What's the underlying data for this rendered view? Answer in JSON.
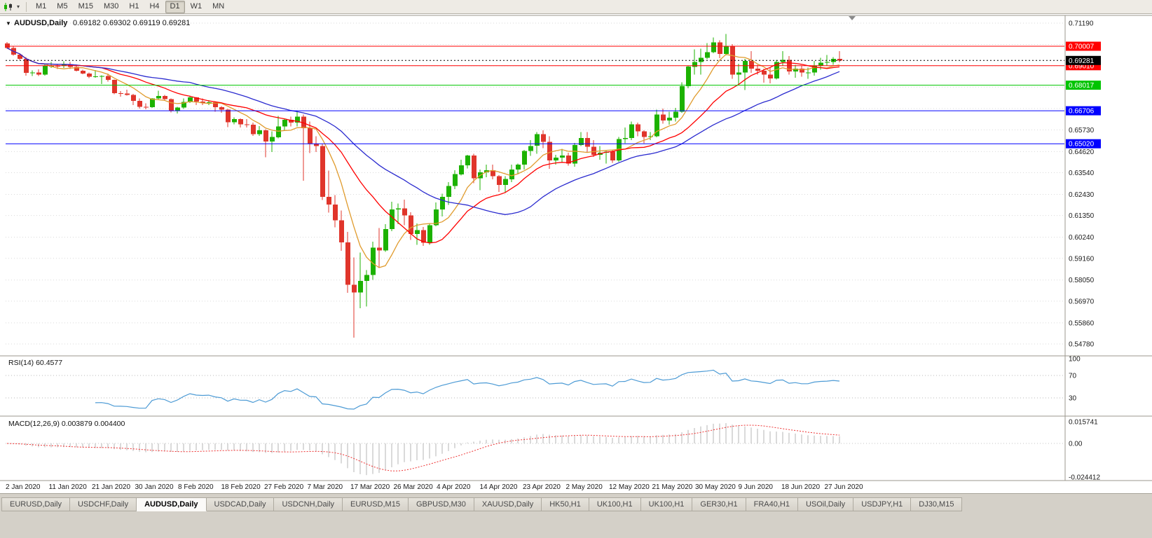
{
  "toolbar": {
    "timeframes": [
      "M1",
      "M5",
      "M15",
      "M30",
      "H1",
      "H4",
      "D1",
      "W1",
      "MN"
    ],
    "active_timeframe": "D1",
    "chart_type_icon": "candlestick-chart",
    "dropdown_glyph": "▾"
  },
  "chart": {
    "dropdown_glyph": "▼",
    "title": "AUDUSD,Daily",
    "ohlc_text": "0.69182 0.69302 0.69119 0.69281"
  },
  "indicator_labels": {
    "rsi": "RSI(14) 60.4577",
    "macd": "MACD(12,26,9) 0.003879 0.004400"
  },
  "tabs": {
    "active_index": 2,
    "items": [
      "EURUSD,Daily",
      "USDCHF,Daily",
      "AUDUSD,Daily",
      "USDCAD,Daily",
      "USDCNH,Daily",
      "EURUSD,M15",
      "GBPUSD,M30",
      "XAUUSD,Daily",
      "HK50,H1",
      "UK100,H1",
      "UK100,H1",
      "GER30,H1",
      "FRA40,H1",
      "USOil,Daily",
      "USDJPY,H1",
      "DJ30,M15"
    ]
  },
  "chart_data": {
    "type": "candlestick",
    "symbol": "AUDUSD",
    "timeframe": "Daily",
    "title": "AUDUSD,Daily",
    "ohlc_display": {
      "open": "0.69182",
      "high": "0.69302",
      "low": "0.69119",
      "close": "0.69281"
    },
    "colors": {
      "bull": "#1CB200",
      "bear": "#E0352B",
      "ma_fast": "#E09B2D",
      "ma_mid": "#FF0000",
      "ma_slow": "#2B2BCF",
      "rsi_line": "#4D9BD5",
      "macd_hist": "#B5B5B5",
      "macd_signal": "#EE3333",
      "grid": "#DADADA"
    },
    "y_axis": {
      "min": 0.5478,
      "max": 0.7119,
      "ticks": [
        [
          0.7119,
          "0.71190"
        ],
        [
          0.70098,
          ""
        ],
        [
          0.69006,
          ""
        ],
        [
          0.67914,
          ""
        ],
        [
          0.66822,
          ""
        ],
        [
          0.6573,
          "0.65730"
        ],
        [
          0.6462,
          "0.64620"
        ],
        [
          0.6354,
          "0.63540"
        ],
        [
          0.6243,
          "0.62430"
        ],
        [
          0.6135,
          "0.61350"
        ],
        [
          0.6024,
          "0.60240"
        ],
        [
          0.5916,
          "0.59160"
        ],
        [
          0.5805,
          "0.58050"
        ],
        [
          0.5697,
          "0.56970"
        ],
        [
          0.5586,
          "0.55860"
        ],
        [
          0.5478,
          "0.54780"
        ]
      ]
    },
    "x_axis_labels": [
      "2 Jan 2020",
      "11 Jan 2020",
      "21 Jan 2020",
      "30 Jan 2020",
      "8 Feb 2020",
      "18 Feb 2020",
      "27 Feb 2020",
      "7 Mar 2020",
      "17 Mar 2020",
      "26 Mar 2020",
      "4 Apr 2020",
      "14 Apr 2020",
      "23 Apr 2020",
      "2 May 2020",
      "12 May 2020",
      "21 May 2020",
      "30 May 2020",
      "9 Jun 2020",
      "18 Jun 2020",
      "27 Jun 2020"
    ],
    "horizontal_lines": [
      {
        "value": 0.70007,
        "label": "0.70007",
        "color": "#FF0000"
      },
      {
        "value": 0.6901,
        "label": "0.69010",
        "color": "#FF0000"
      },
      {
        "value": 0.68017,
        "label": "0.68017",
        "color": "#00C400"
      },
      {
        "value": 0.66706,
        "label": "0.66706",
        "color": "#0000FF"
      },
      {
        "value": 0.6502,
        "label": "0.65020",
        "color": "#0000FF"
      }
    ],
    "bid_line": {
      "value": 0.69281,
      "label": "0.69281",
      "color": "#000000"
    },
    "moving_averages": [
      {
        "name": "ma-fast",
        "period": 7,
        "color": "#E09B2D"
      },
      {
        "name": "ma-mid",
        "period": 16,
        "color": "#FF0000"
      },
      {
        "name": "ma-slow",
        "period": 30,
        "color": "#2B2BCF"
      }
    ],
    "indicators": {
      "rsi": {
        "label": "RSI(14) 60.4577",
        "period": 14,
        "levels": [
          {
            "value": 100,
            "label": "100"
          },
          {
            "value": 70,
            "label": "70"
          },
          {
            "value": 30,
            "label": "30"
          }
        ]
      },
      "macd": {
        "label": "MACD(12,26,9) 0.003879 0.004400",
        "fast": 12,
        "slow": 26,
        "signal": 9,
        "scale": [
          {
            "value": 0.015741,
            "label": "0.015741"
          },
          {
            "value": 0,
            "label": "0.00"
          },
          {
            "value": -0.024412,
            "label": "-0.024412"
          }
        ]
      }
    },
    "candles": [
      [
        0.7015,
        0.7023,
        0.6988,
        0.6992
      ],
      [
        0.6992,
        0.7,
        0.6953,
        0.6958
      ],
      [
        0.6958,
        0.6965,
        0.693,
        0.6936
      ],
      [
        0.6936,
        0.6945,
        0.685,
        0.6865
      ],
      [
        0.6865,
        0.6878,
        0.6849,
        0.6866
      ],
      [
        0.6866,
        0.6882,
        0.6848,
        0.6856
      ],
      [
        0.6856,
        0.6912,
        0.685,
        0.69
      ],
      [
        0.69,
        0.692,
        0.689,
        0.6901
      ],
      [
        0.6901,
        0.6908,
        0.6884,
        0.69
      ],
      [
        0.69,
        0.6923,
        0.689,
        0.6906
      ],
      [
        0.6906,
        0.692,
        0.6885,
        0.6895
      ],
      [
        0.6895,
        0.6901,
        0.6871,
        0.6876
      ],
      [
        0.6876,
        0.6881,
        0.6857,
        0.6861
      ],
      [
        0.6861,
        0.6866,
        0.6837,
        0.6845
      ],
      [
        0.6845,
        0.6879,
        0.684,
        0.6847
      ],
      [
        0.6847,
        0.6852,
        0.6808,
        0.6848
      ],
      [
        0.6848,
        0.6861,
        0.682,
        0.6828
      ],
      [
        0.6828,
        0.6831,
        0.6755,
        0.6761
      ],
      [
        0.6761,
        0.6771,
        0.6742,
        0.6759
      ],
      [
        0.6759,
        0.6778,
        0.6748,
        0.6751
      ],
      [
        0.6751,
        0.6758,
        0.67,
        0.6721
      ],
      [
        0.6721,
        0.6733,
        0.6682,
        0.6691
      ],
      [
        0.6691,
        0.6708,
        0.6678,
        0.6689
      ],
      [
        0.6689,
        0.6736,
        0.6685,
        0.6734
      ],
      [
        0.6734,
        0.6773,
        0.673,
        0.6746
      ],
      [
        0.6746,
        0.6751,
        0.6722,
        0.6731
      ],
      [
        0.6731,
        0.6733,
        0.6662,
        0.6671
      ],
      [
        0.6671,
        0.669,
        0.6657,
        0.6688
      ],
      [
        0.6688,
        0.6733,
        0.668,
        0.6716
      ],
      [
        0.6716,
        0.6748,
        0.671,
        0.6739
      ],
      [
        0.6739,
        0.6741,
        0.67,
        0.6717
      ],
      [
        0.6717,
        0.6733,
        0.67,
        0.6712
      ],
      [
        0.6712,
        0.6725,
        0.67,
        0.6714
      ],
      [
        0.6714,
        0.6716,
        0.6665,
        0.6689
      ],
      [
        0.6689,
        0.6695,
        0.666,
        0.6676
      ],
      [
        0.6676,
        0.668,
        0.6587,
        0.6611
      ],
      [
        0.6611,
        0.6637,
        0.6601,
        0.6628
      ],
      [
        0.6628,
        0.6631,
        0.6585,
        0.6601
      ],
      [
        0.6601,
        0.6628,
        0.6586,
        0.66
      ],
      [
        0.66,
        0.661,
        0.6542,
        0.6551
      ],
      [
        0.6551,
        0.6592,
        0.6543,
        0.6571
      ],
      [
        0.6571,
        0.6576,
        0.6433,
        0.6514
      ],
      [
        0.6514,
        0.6565,
        0.646,
        0.6536
      ],
      [
        0.6536,
        0.6645,
        0.653,
        0.6591
      ],
      [
        0.6591,
        0.663,
        0.657,
        0.6624
      ],
      [
        0.6624,
        0.6641,
        0.659,
        0.6611
      ],
      [
        0.6611,
        0.667,
        0.659,
        0.6641
      ],
      [
        0.6641,
        0.6651,
        0.6313,
        0.6581
      ],
      [
        0.6581,
        0.6615,
        0.6455,
        0.6501
      ],
      [
        0.6501,
        0.654,
        0.646,
        0.6491
      ],
      [
        0.6491,
        0.6501,
        0.6215,
        0.6231
      ],
      [
        0.6231,
        0.6365,
        0.615,
        0.6191
      ],
      [
        0.6191,
        0.624,
        0.6075,
        0.6111
      ],
      [
        0.6111,
        0.6161,
        0.5955,
        0.5998
      ],
      [
        0.5998,
        0.6051,
        0.574,
        0.5781
      ],
      [
        0.5781,
        0.5921,
        0.551,
        0.5741
      ],
      [
        0.5741,
        0.5945,
        0.566,
        0.5801
      ],
      [
        0.5801,
        0.5856,
        0.567,
        0.5831
      ],
      [
        0.5831,
        0.6001,
        0.5805,
        0.5971
      ],
      [
        0.5971,
        0.6071,
        0.587,
        0.5956
      ],
      [
        0.5956,
        0.6091,
        0.595,
        0.6066
      ],
      [
        0.6066,
        0.6205,
        0.6055,
        0.6166
      ],
      [
        0.6166,
        0.6196,
        0.609,
        0.6171
      ],
      [
        0.6171,
        0.6216,
        0.6085,
        0.6136
      ],
      [
        0.6136,
        0.6151,
        0.601,
        0.6041
      ],
      [
        0.6041,
        0.6095,
        0.5985,
        0.6061
      ],
      [
        0.6061,
        0.6076,
        0.598,
        0.5996
      ],
      [
        0.5996,
        0.6095,
        0.5985,
        0.6086
      ],
      [
        0.6086,
        0.6201,
        0.608,
        0.6166
      ],
      [
        0.6166,
        0.6246,
        0.613,
        0.6231
      ],
      [
        0.6231,
        0.6306,
        0.619,
        0.6286
      ],
      [
        0.6286,
        0.6366,
        0.627,
        0.6346
      ],
      [
        0.6346,
        0.6421,
        0.634,
        0.6391
      ],
      [
        0.6391,
        0.6446,
        0.6375,
        0.6441
      ],
      [
        0.6441,
        0.6451,
        0.63,
        0.6326
      ],
      [
        0.6326,
        0.6371,
        0.6265,
        0.6356
      ],
      [
        0.6356,
        0.6396,
        0.633,
        0.6366
      ],
      [
        0.6366,
        0.6396,
        0.632,
        0.6336
      ],
      [
        0.6336,
        0.6341,
        0.6255,
        0.6291
      ],
      [
        0.6291,
        0.6336,
        0.625,
        0.6321
      ],
      [
        0.6321,
        0.6396,
        0.6305,
        0.6371
      ],
      [
        0.6371,
        0.6401,
        0.6345,
        0.6396
      ],
      [
        0.6396,
        0.6471,
        0.637,
        0.6466
      ],
      [
        0.6466,
        0.6521,
        0.644,
        0.6491
      ],
      [
        0.6491,
        0.6561,
        0.645,
        0.6551
      ],
      [
        0.6551,
        0.6571,
        0.648,
        0.6511
      ],
      [
        0.6511,
        0.6541,
        0.6373,
        0.6416
      ],
      [
        0.6416,
        0.6446,
        0.6395,
        0.6431
      ],
      [
        0.6431,
        0.6476,
        0.641,
        0.6441
      ],
      [
        0.6441,
        0.6456,
        0.639,
        0.6401
      ],
      [
        0.6401,
        0.6506,
        0.6385,
        0.6496
      ],
      [
        0.6496,
        0.6561,
        0.649,
        0.6531
      ],
      [
        0.6531,
        0.6561,
        0.646,
        0.6486
      ],
      [
        0.6486,
        0.6521,
        0.6435,
        0.6446
      ],
      [
        0.6446,
        0.6491,
        0.642,
        0.6456
      ],
      [
        0.6456,
        0.6466,
        0.64,
        0.6461
      ],
      [
        0.6461,
        0.6471,
        0.6405,
        0.6416
      ],
      [
        0.6416,
        0.6536,
        0.641,
        0.6526
      ],
      [
        0.6526,
        0.6586,
        0.6505,
        0.6531
      ],
      [
        0.6531,
        0.6616,
        0.652,
        0.6601
      ],
      [
        0.6601,
        0.6611,
        0.654,
        0.6566
      ],
      [
        0.6566,
        0.6571,
        0.6505,
        0.6536
      ],
      [
        0.6536,
        0.6561,
        0.652,
        0.6541
      ],
      [
        0.6541,
        0.6676,
        0.6535,
        0.6651
      ],
      [
        0.6651,
        0.6681,
        0.6605,
        0.6621
      ],
      [
        0.6621,
        0.6666,
        0.66,
        0.6636
      ],
      [
        0.6636,
        0.6686,
        0.6615,
        0.6666
      ],
      [
        0.6666,
        0.6816,
        0.666,
        0.6796
      ],
      [
        0.6796,
        0.6901,
        0.6785,
        0.6896
      ],
      [
        0.6896,
        0.6984,
        0.6855,
        0.6921
      ],
      [
        0.6921,
        0.6988,
        0.6855,
        0.6941
      ],
      [
        0.6941,
        0.7016,
        0.6935,
        0.6971
      ],
      [
        0.6971,
        0.7046,
        0.6965,
        0.7021
      ],
      [
        0.7021,
        0.7031,
        0.694,
        0.6961
      ],
      [
        0.6961,
        0.7064,
        0.6955,
        0.7001
      ],
      [
        0.7001,
        0.7011,
        0.6835,
        0.6856
      ],
      [
        0.6856,
        0.6911,
        0.68,
        0.6866
      ],
      [
        0.6866,
        0.6936,
        0.6776,
        0.6926
      ],
      [
        0.6926,
        0.6976,
        0.6865,
        0.6886
      ],
      [
        0.6886,
        0.6906,
        0.6855,
        0.6876
      ],
      [
        0.6876,
        0.6886,
        0.6815,
        0.6856
      ],
      [
        0.6856,
        0.6891,
        0.681,
        0.6836
      ],
      [
        0.6836,
        0.6931,
        0.683,
        0.6921
      ],
      [
        0.6921,
        0.6976,
        0.69,
        0.6931
      ],
      [
        0.6931,
        0.6951,
        0.6855,
        0.6871
      ],
      [
        0.6871,
        0.6906,
        0.684,
        0.6886
      ],
      [
        0.6886,
        0.6901,
        0.6845,
        0.6866
      ],
      [
        0.6866,
        0.6891,
        0.6835,
        0.6866
      ],
      [
        0.6866,
        0.6926,
        0.685,
        0.6901
      ],
      [
        0.6901,
        0.6941,
        0.688,
        0.6916
      ],
      [
        0.6916,
        0.6956,
        0.69,
        0.6921
      ],
      [
        0.6921,
        0.6946,
        0.6905,
        0.6936
      ],
      [
        0.6936,
        0.6976,
        0.6918,
        0.6928
      ]
    ]
  }
}
